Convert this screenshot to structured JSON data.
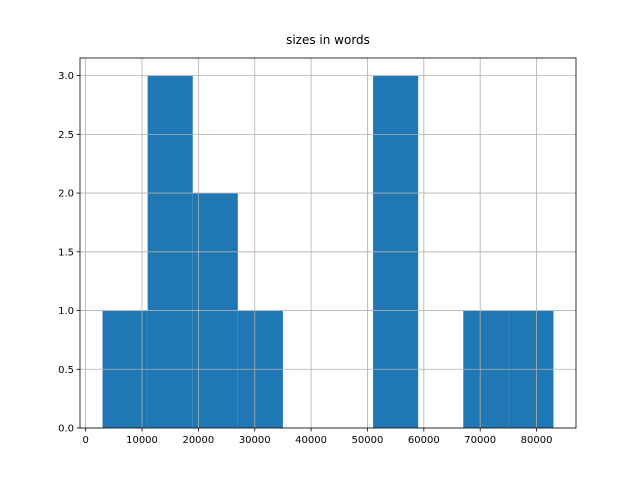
{
  "chart_data": {
    "type": "histogram",
    "title": "sizes in words",
    "bins": [
      3000,
      11000,
      19000,
      27000,
      35000,
      43000,
      51000,
      59000,
      67000,
      75000,
      83000
    ],
    "values": [
      1,
      3,
      2,
      1,
      0,
      0,
      3,
      0,
      1,
      1
    ],
    "color": "#1f77b4",
    "xlim": [
      -1000,
      87000
    ],
    "xticks": [
      0,
      10000,
      20000,
      30000,
      40000,
      50000,
      60000,
      70000,
      80000
    ],
    "ylim": [
      0,
      3.15
    ],
    "yticks": [
      {
        "value": 0,
        "label": "0.0"
      },
      0.5,
      {
        "value": 1,
        "label": "1.0"
      },
      1.5,
      {
        "value": 2,
        "label": "2.0"
      },
      2.5,
      {
        "value": 3,
        "label": "3.0"
      }
    ],
    "grid": true
  }
}
